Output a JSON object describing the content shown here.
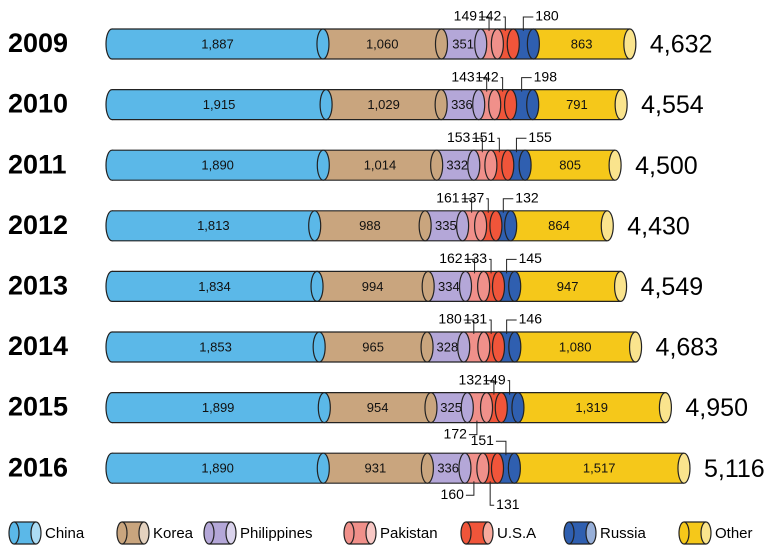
{
  "chart_data": {
    "type": "stacked-cylinder-bar",
    "categories": [
      "2009",
      "2010",
      "2011",
      "2012",
      "2013",
      "2014",
      "2015",
      "2016"
    ],
    "series": [
      {
        "name": "China",
        "color": "#5bb8e8",
        "values": [
          1887,
          1915,
          1890,
          1813,
          1834,
          1853,
          1899,
          1890
        ],
        "value_labels": [
          "1,887",
          "1,915",
          "1,890",
          "1,813",
          "1,834",
          "1,853",
          "1,899",
          "1,890"
        ]
      },
      {
        "name": "Korea",
        "color": "#c9a57e",
        "values": [
          1060,
          1029,
          1014,
          988,
          994,
          965,
          954,
          931
        ],
        "value_labels": [
          "1,060",
          "1,029",
          "1,014",
          "988",
          "994",
          "965",
          "954",
          "931"
        ]
      },
      {
        "name": "Philippines",
        "color": "#b4a7d8",
        "values": [
          351,
          336,
          332,
          335,
          334,
          328,
          325,
          336
        ]
      },
      {
        "name": "Pakistan",
        "color": "#f0908a",
        "values": [
          149,
          143,
          153,
          161,
          162,
          180,
          172,
          160
        ]
      },
      {
        "name": "U.S.A",
        "color": "#f0553a",
        "values": [
          142,
          142,
          151,
          137,
          133,
          131,
          132,
          131
        ]
      },
      {
        "name": "Russia",
        "color": "#2f5fb0",
        "values": [
          180,
          198,
          155,
          132,
          145,
          146,
          149,
          151
        ]
      },
      {
        "name": "Other",
        "color": "#f5c81a",
        "values": [
          863,
          791,
          805,
          864,
          947,
          1080,
          1319,
          1517
        ],
        "value_labels": [
          "863",
          "791",
          "805",
          "864",
          "947",
          "1,080",
          "1,319",
          "1,517"
        ]
      }
    ],
    "totals": {
      "values": [
        4632,
        4554,
        4500,
        4430,
        4549,
        4683,
        4950,
        5116
      ],
      "value_labels": [
        "4,632",
        "4,554",
        "4,500",
        "4,430",
        "4,549",
        "4,683",
        "4,950",
        "5,116"
      ]
    }
  }
}
